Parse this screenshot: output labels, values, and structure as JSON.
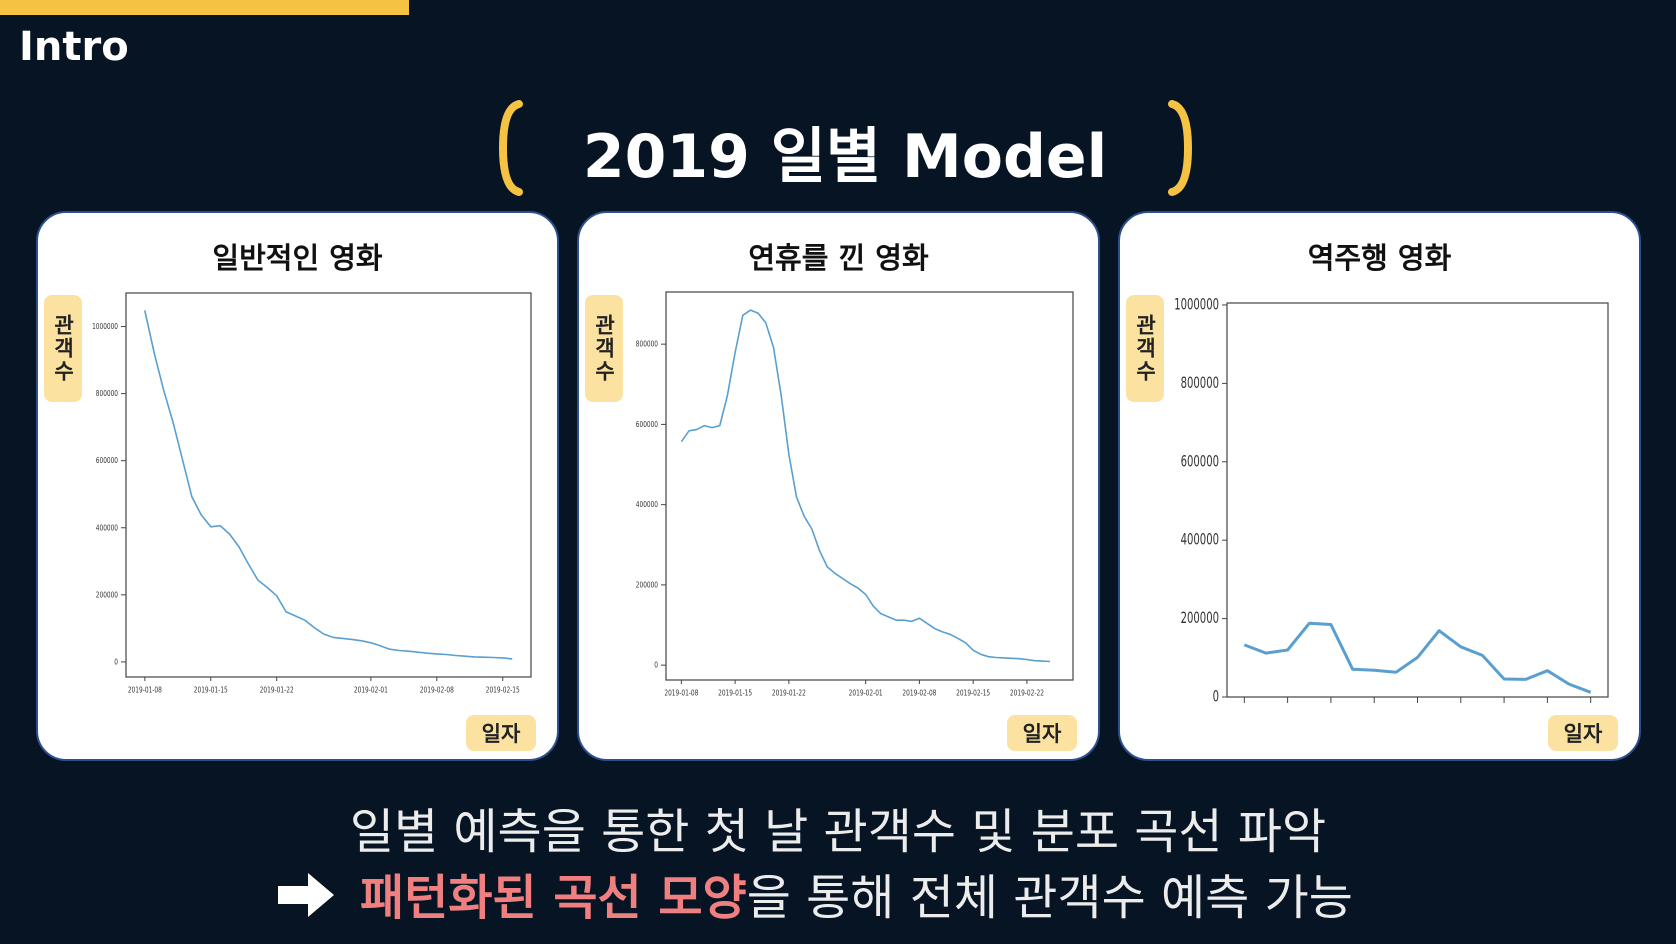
{
  "header": {
    "section": "Intro",
    "title": "2019 일별 Model"
  },
  "chart_data": [
    {
      "type": "line",
      "title": "일반적인 영화",
      "y_label": "관객수",
      "x_label": "일자",
      "color": "#5a9fd0",
      "x": [
        "2019-01-08",
        "2019-01-09",
        "2019-01-10",
        "2019-01-11",
        "2019-01-12",
        "2019-01-13",
        "2019-01-14",
        "2019-01-15",
        "2019-01-16",
        "2019-01-17",
        "2019-01-18",
        "2019-01-19",
        "2019-01-20",
        "2019-01-21",
        "2019-01-22",
        "2019-01-23",
        "2019-01-24",
        "2019-01-25",
        "2019-01-26",
        "2019-01-27",
        "2019-01-28",
        "2019-01-29",
        "2019-01-30",
        "2019-01-31",
        "2019-02-01",
        "2019-02-02",
        "2019-02-03",
        "2019-02-04",
        "2019-02-05",
        "2019-02-06",
        "2019-02-07",
        "2019-02-08",
        "2019-02-09",
        "2019-02-10",
        "2019-02-11",
        "2019-02-12",
        "2019-02-13",
        "2019-02-14",
        "2019-02-15",
        "2019-02-16"
      ],
      "values": [
        1048000,
        920000,
        810000,
        714000,
        603000,
        492000,
        438000,
        403000,
        406000,
        381000,
        343000,
        292000,
        244000,
        222000,
        197000,
        149000,
        137000,
        124000,
        102000,
        83000,
        73000,
        70000,
        67000,
        63000,
        57000,
        48000,
        38000,
        34000,
        32000,
        29000,
        26000,
        24000,
        22000,
        19000,
        17000,
        15000,
        14000,
        13000,
        12000,
        9000
      ],
      "xlim": [
        "2019-01-06",
        "2019-02-18"
      ],
      "xticks": [
        "2019-01-08",
        "2019-01-15",
        "2019-01-22",
        "2019-02-01",
        "2019-02-08",
        "2019-02-15"
      ],
      "ylim": [
        -45000,
        1100000
      ],
      "yticks": [
        0,
        200000,
        400000,
        600000,
        800000,
        1000000
      ]
    },
    {
      "type": "line",
      "title": "연휴를 낀 영화",
      "y_label": "관객수",
      "x_label": "일자",
      "color": "#5a9fd0",
      "x": [
        "2019-01-08",
        "2019-01-09",
        "2019-01-10",
        "2019-01-11",
        "2019-01-12",
        "2019-01-13",
        "2019-01-14",
        "2019-01-15",
        "2019-01-16",
        "2019-01-17",
        "2019-01-18",
        "2019-01-19",
        "2019-01-20",
        "2019-01-21",
        "2019-01-22",
        "2019-01-23",
        "2019-01-24",
        "2019-01-25",
        "2019-01-26",
        "2019-01-27",
        "2019-01-28",
        "2019-01-29",
        "2019-01-30",
        "2019-01-31",
        "2019-02-01",
        "2019-02-02",
        "2019-02-03",
        "2019-02-04",
        "2019-02-05",
        "2019-02-06",
        "2019-02-07",
        "2019-02-08",
        "2019-02-09",
        "2019-02-10",
        "2019-02-11",
        "2019-02-12",
        "2019-02-13",
        "2019-02-14",
        "2019-02-15",
        "2019-02-16",
        "2019-02-17",
        "2019-02-18",
        "2019-02-19",
        "2019-02-20",
        "2019-02-21",
        "2019-02-22",
        "2019-02-23",
        "2019-02-24",
        "2019-02-25"
      ],
      "values": [
        557000,
        584000,
        587000,
        597000,
        592000,
        597000,
        672000,
        779000,
        872000,
        885000,
        877000,
        853000,
        792000,
        672000,
        525000,
        419000,
        371000,
        339000,
        285000,
        245000,
        229000,
        216000,
        203000,
        192000,
        176000,
        147000,
        128000,
        120000,
        112000,
        112000,
        109000,
        117000,
        104000,
        91000,
        83000,
        77000,
        67000,
        56000,
        37000,
        27000,
        21000,
        19000,
        18000,
        17000,
        16000,
        14000,
        11000,
        10000,
        9000
      ],
      "xlim": [
        "2019-01-06",
        "2019-02-28"
      ],
      "xticks": [
        "2019-01-08",
        "2019-01-15",
        "2019-01-22",
        "2019-02-01",
        "2019-02-08",
        "2019-02-15",
        "2019-02-22"
      ],
      "ylim": [
        -37000,
        930000
      ],
      "yticks": [
        0,
        200000,
        400000,
        600000,
        800000
      ]
    },
    {
      "type": "line",
      "title": "역주행 영화",
      "y_label": "관객수",
      "x_label": "일자",
      "color": "#5a9fd0",
      "categories": [
        null,
        null,
        null,
        null,
        null,
        null,
        null,
        null,
        null,
        null,
        null,
        null,
        null,
        null,
        null,
        null,
        null
      ],
      "values": [
        133000,
        112000,
        120000,
        188000,
        185000,
        71000,
        68000,
        63000,
        101000,
        169000,
        128000,
        106000,
        46000,
        45000,
        67000,
        33000,
        12000
      ],
      "ylim": [
        0,
        1005000
      ],
      "yticks": [
        0,
        200000,
        400000,
        600000,
        800000,
        1000000
      ]
    }
  ],
  "footer": {
    "line1": "일별 예측을 통한 첫 날 관객수 및 분포 곡선 파악",
    "highlight": "패턴화된 곡선 모양",
    "line2": "을 통해 전체 관객수 예측 가능"
  }
}
